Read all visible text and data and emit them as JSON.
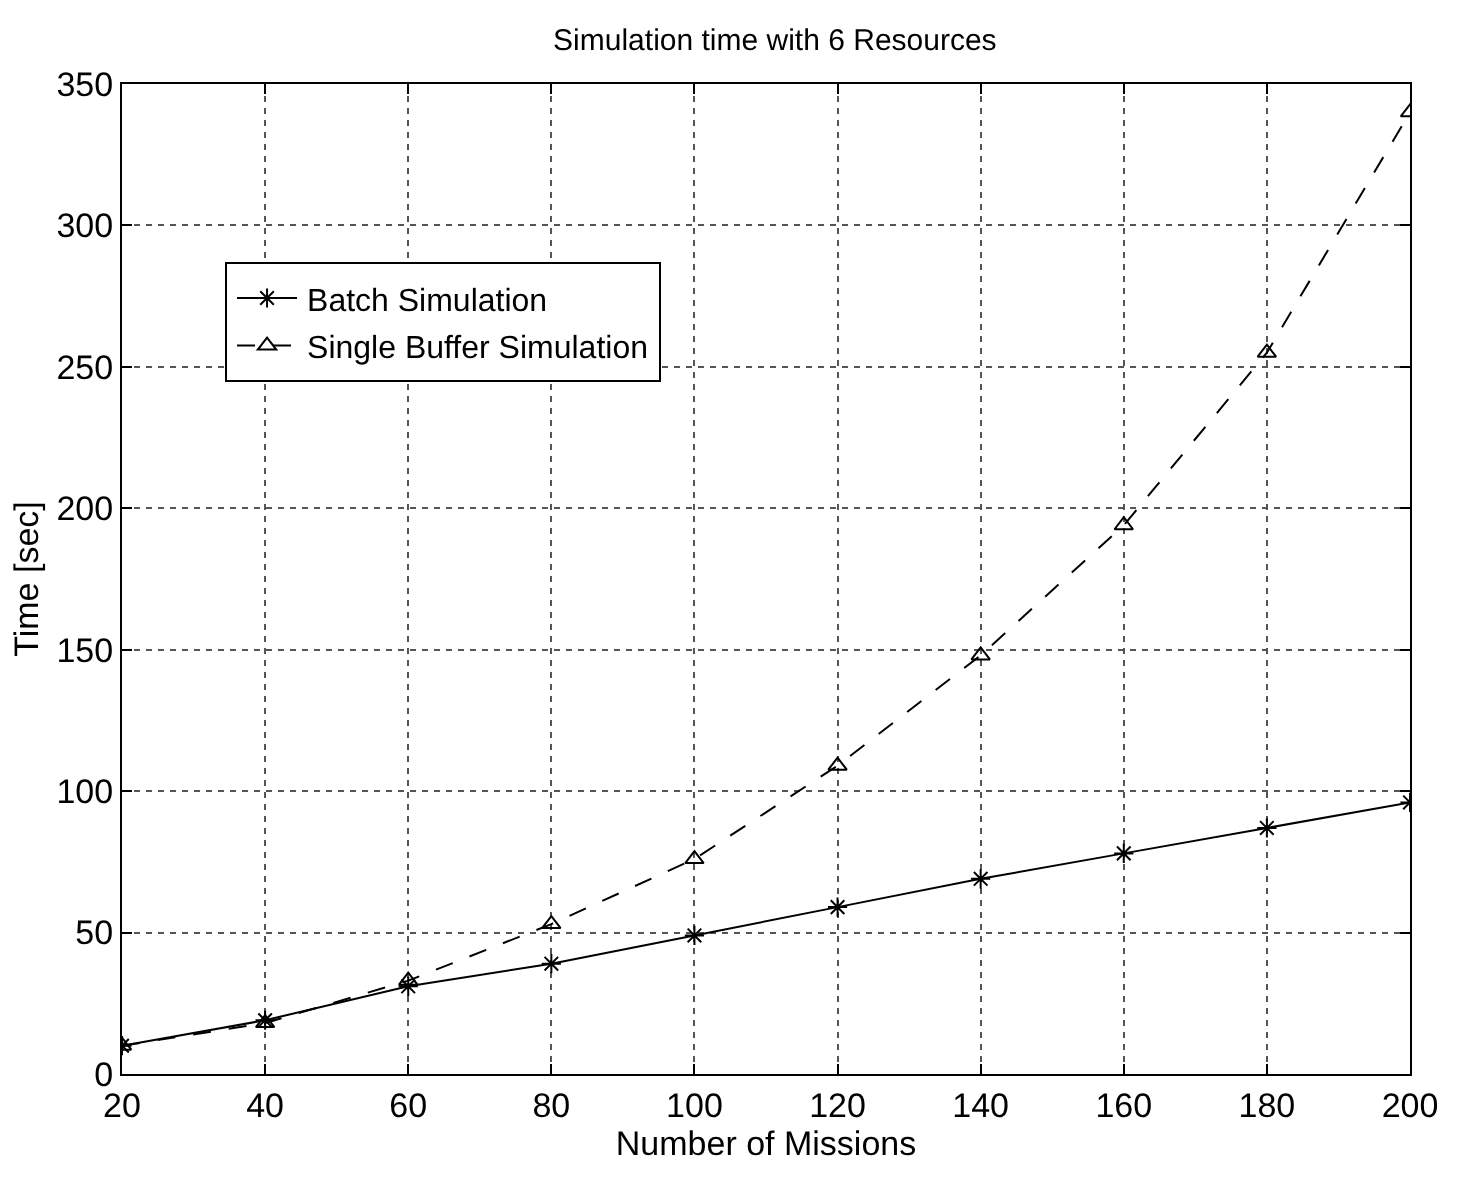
{
  "chart_data": {
    "type": "line",
    "title": "Simulation time with 6 Resources",
    "xlabel": "Number of Missions",
    "ylabel": "Time [sec]",
    "x": [
      20,
      40,
      60,
      80,
      100,
      120,
      140,
      160,
      180,
      200
    ],
    "series": [
      {
        "name": "Batch Simulation",
        "color": "#000000",
        "marker": "cross",
        "line_style": "solid",
        "values": [
          10,
          19,
          31,
          39,
          49,
          59,
          69,
          78,
          87,
          96
        ]
      },
      {
        "name": "Single Buffer Simulation",
        "color": "#000000",
        "marker": "triangle",
        "line_style": "dashed",
        "values": [
          10,
          18,
          33,
          53,
          76,
          109,
          148,
          194,
          255,
          340
        ]
      }
    ],
    "xlim": [
      20,
      200
    ],
    "xticks": [
      20,
      40,
      60,
      80,
      100,
      120,
      140,
      160,
      180,
      200
    ],
    "ylim": [
      0,
      350
    ],
    "yticks": [
      0,
      50,
      100,
      150,
      200,
      250,
      300,
      350
    ],
    "grid": true,
    "legend": "top left"
  }
}
